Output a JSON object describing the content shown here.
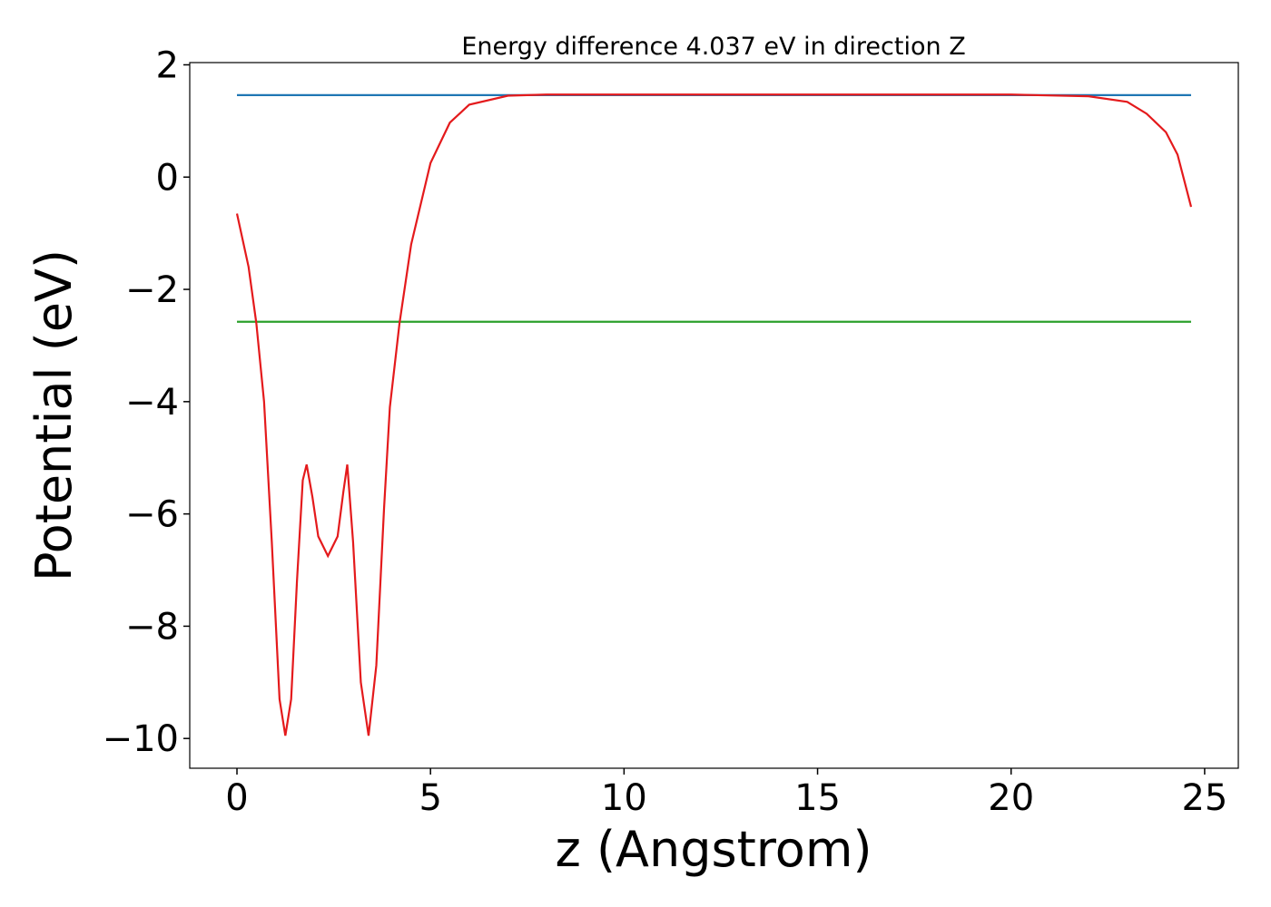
{
  "chart_data": {
    "type": "line",
    "title": "Energy difference 4.037 eV in direction Z",
    "xlabel": "z (Angstrom)",
    "ylabel": "Potential (eV)",
    "xlim": [
      -1.22,
      25.87
    ],
    "ylim": [
      -10.53,
      2.04
    ],
    "xticks": [
      0,
      5,
      10,
      15,
      20,
      25
    ],
    "yticks": [
      {
        "value": -10,
        "label": "−10"
      },
      {
        "value": -8,
        "label": "−8"
      },
      {
        "value": -6,
        "label": "−6"
      },
      {
        "value": -4,
        "label": "−4"
      },
      {
        "value": -2,
        "label": "−2"
      },
      0,
      2
    ],
    "series": [
      {
        "color": "#1f77b4",
        "x": [
          0,
          24.65
        ],
        "values": [
          1.46,
          1.46
        ]
      },
      {
        "color": "#2ca02c",
        "x": [
          0,
          24.65
        ],
        "values": [
          -2.577,
          -2.577
        ]
      },
      {
        "color": "#e41a1c",
        "x": [
          0,
          0.3,
          0.5,
          0.7,
          0.9,
          1.1,
          1.25,
          1.4,
          1.55,
          1.7,
          1.8,
          1.95,
          2.1,
          2.35,
          2.6,
          2.75,
          2.85,
          3.0,
          3.2,
          3.4,
          3.6,
          3.8,
          3.95,
          4.2,
          4.5,
          5.0,
          5.5,
          6.0,
          7.0,
          8.0,
          10.0,
          15.0,
          20.0,
          22.0,
          23.0,
          23.5,
          24.0,
          24.3,
          24.65
        ],
        "values": [
          -0.65,
          -1.6,
          -2.6,
          -4.0,
          -6.5,
          -9.3,
          -9.95,
          -9.3,
          -7.2,
          -5.4,
          -5.12,
          -5.7,
          -6.4,
          -6.75,
          -6.4,
          -5.6,
          -5.12,
          -6.5,
          -9.0,
          -9.95,
          -8.7,
          -5.9,
          -4.1,
          -2.6,
          -1.2,
          0.25,
          0.97,
          1.29,
          1.45,
          1.47,
          1.47,
          1.47,
          1.47,
          1.44,
          1.34,
          1.13,
          0.8,
          0.4,
          -0.53
        ]
      }
    ]
  }
}
